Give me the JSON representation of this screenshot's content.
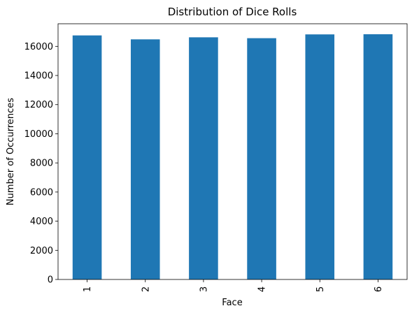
{
  "chart_data": {
    "type": "bar",
    "title": "Distribution of Dice Rolls",
    "xlabel": "Face",
    "ylabel": "Number of Occurrences",
    "categories": [
      "1",
      "2",
      "3",
      "4",
      "5",
      "6"
    ],
    "values": [
      16750,
      16480,
      16620,
      16560,
      16820,
      16830
    ],
    "ylim": [
      0,
      17550
    ],
    "yticks": [
      0,
      2000,
      4000,
      6000,
      8000,
      10000,
      12000,
      14000,
      16000
    ],
    "grid": false,
    "legend": "none",
    "bar_color": "#1f77b4",
    "axis_color": "#000000"
  }
}
